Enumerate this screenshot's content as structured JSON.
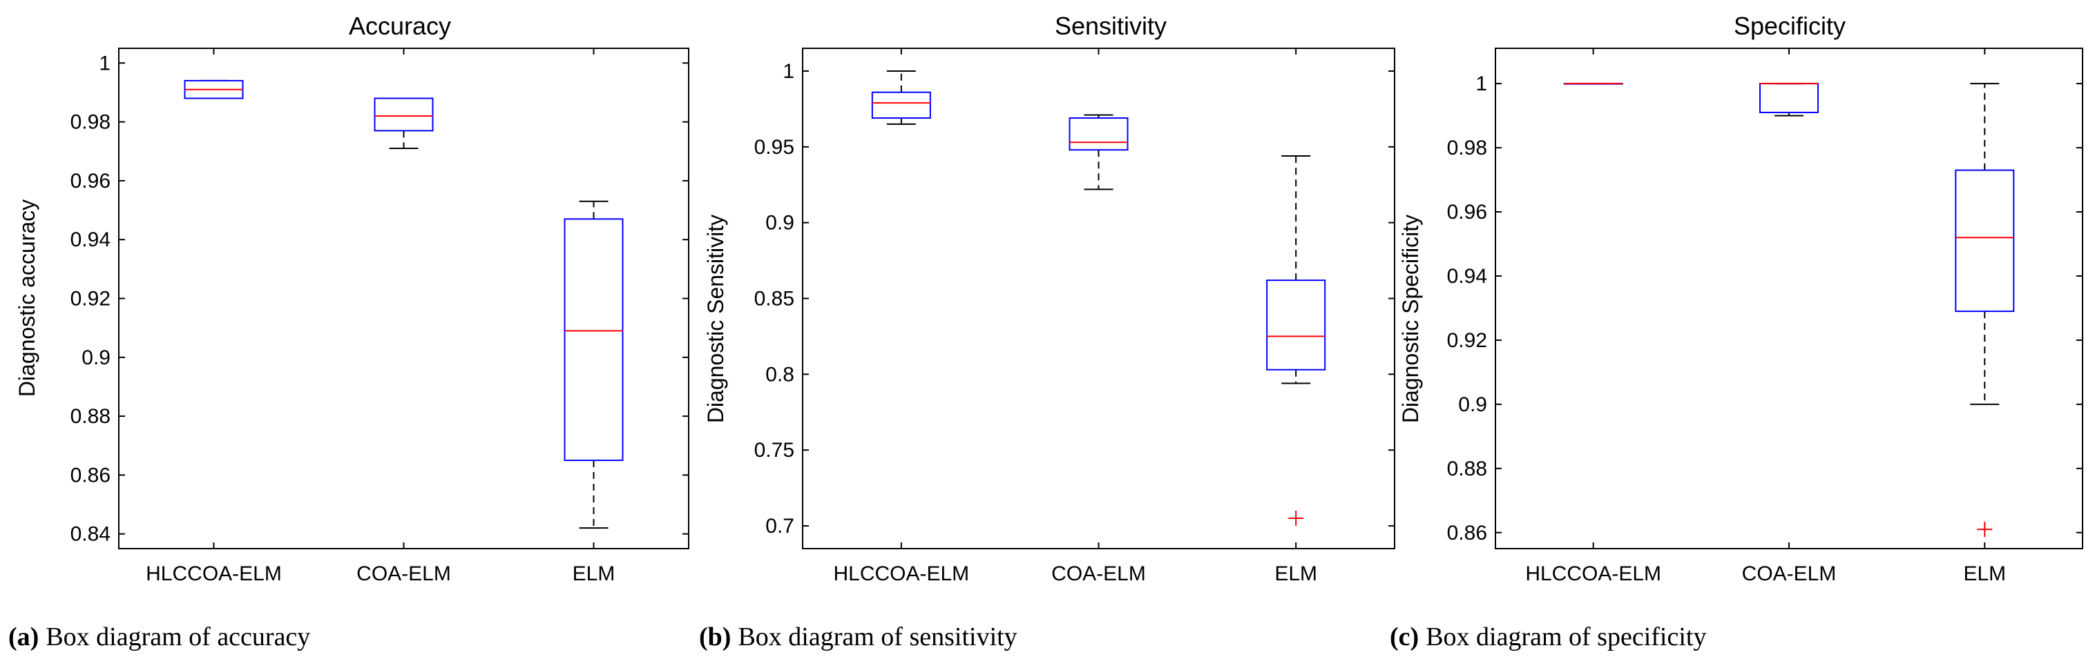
{
  "chart_data": [
    {
      "type": "box",
      "title": "Accuracy",
      "ylabel": "Diagnostic accuracy",
      "xlabel": "",
      "caption_label": "(a)",
      "caption_text": "Box diagram of accuracy",
      "ylim": [
        0.835,
        1.005
      ],
      "yticks": [
        0.84,
        0.86,
        0.88,
        0.9,
        0.92,
        0.94,
        0.96,
        0.98,
        1
      ],
      "ytick_labels": [
        "0.84",
        "0.86",
        "0.88",
        "0.9",
        "0.92",
        "0.94",
        "0.96",
        "0.98",
        "1"
      ],
      "categories": [
        "HLCCOA-ELM",
        "COA-ELM",
        "ELM"
      ],
      "boxes": [
        {
          "min": 0.988,
          "q1": 0.988,
          "median": 0.991,
          "q3": 0.994,
          "max": 0.994,
          "outliers": []
        },
        {
          "min": 0.971,
          "q1": 0.977,
          "median": 0.982,
          "q3": 0.988,
          "max": 0.988,
          "outliers": []
        },
        {
          "min": 0.842,
          "q1": 0.865,
          "median": 0.909,
          "q3": 0.947,
          "max": 0.953,
          "outliers": []
        }
      ],
      "colors": {
        "box": "#0000ff",
        "median": "#ff0000",
        "whisker": "#000000",
        "outlier": "#ff0000"
      }
    },
    {
      "type": "box",
      "title": "Sensitivity",
      "ylabel": "Diagnostic Sensitivity",
      "xlabel": "",
      "caption_label": "(b)",
      "caption_text": "Box diagram of sensitivity",
      "ylim": [
        0.685,
        1.015
      ],
      "yticks": [
        0.7,
        0.75,
        0.8,
        0.85,
        0.9,
        0.95,
        1
      ],
      "ytick_labels": [
        "0.7",
        "0.75",
        "0.8",
        "0.85",
        "0.9",
        "0.95",
        "1"
      ],
      "categories": [
        "HLCCOA-ELM",
        "COA-ELM",
        "ELM"
      ],
      "boxes": [
        {
          "min": 0.965,
          "q1": 0.969,
          "median": 0.979,
          "q3": 0.986,
          "max": 1.0,
          "outliers": []
        },
        {
          "min": 0.922,
          "q1": 0.948,
          "median": 0.953,
          "q3": 0.969,
          "max": 0.971,
          "outliers": []
        },
        {
          "min": 0.794,
          "q1": 0.803,
          "median": 0.825,
          "q3": 0.862,
          "max": 0.944,
          "outliers": [
            0.705
          ]
        }
      ],
      "colors": {
        "box": "#0000ff",
        "median": "#ff0000",
        "whisker": "#000000",
        "outlier": "#ff0000"
      }
    },
    {
      "type": "box",
      "title": "Specificity",
      "ylabel": "Diagnostic Specificity",
      "xlabel": "",
      "caption_label": "(c)",
      "caption_text": "Box diagram of specificity",
      "ylim": [
        0.855,
        1.011
      ],
      "yticks": [
        0.86,
        0.88,
        0.9,
        0.92,
        0.94,
        0.96,
        0.98,
        1
      ],
      "ytick_labels": [
        "0.86",
        "0.88",
        "0.9",
        "0.92",
        "0.94",
        "0.96",
        "0.98",
        "1"
      ],
      "categories": [
        "HLCCOA-ELM",
        "COA-ELM",
        "ELM"
      ],
      "boxes": [
        {
          "min": 1.0,
          "q1": 1.0,
          "median": 1.0,
          "q3": 1.0,
          "max": 1.0,
          "outliers": []
        },
        {
          "min": 0.99,
          "q1": 0.991,
          "median": 1.0,
          "q3": 1.0,
          "max": 1.0,
          "outliers": []
        },
        {
          "min": 0.9,
          "q1": 0.929,
          "median": 0.952,
          "q3": 0.973,
          "max": 1.0,
          "outliers": [
            0.861
          ]
        }
      ],
      "colors": {
        "box": "#0000ff",
        "median": "#ff0000",
        "whisker": "#000000",
        "outlier": "#ff0000"
      }
    }
  ]
}
